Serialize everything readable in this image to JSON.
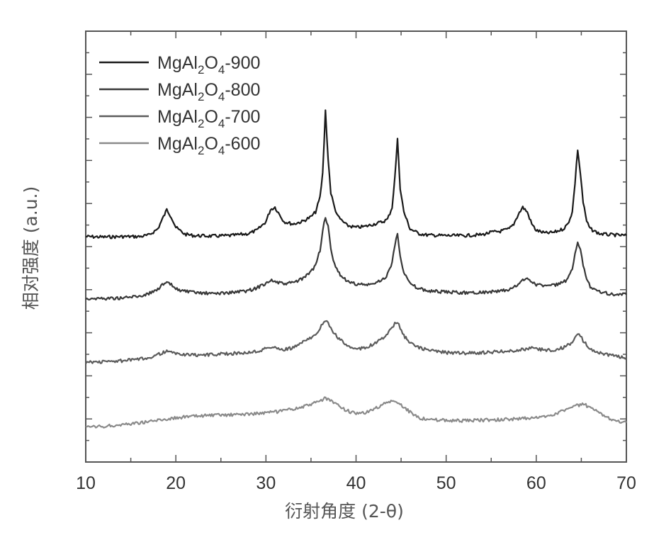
{
  "chart_data": {
    "type": "line",
    "xlabel": "衍射角度 (2-θ)",
    "ylabel": "相对强度 (a.u.)",
    "xlim": [
      10,
      70
    ],
    "xticks": [
      "10",
      "20",
      "30",
      "40",
      "50",
      "60",
      "70"
    ],
    "y_tick_labels_shown": false,
    "grid": false,
    "legend_position": "top-left",
    "series": [
      {
        "name": "MgAl2O4-900",
        "label_main": "MgAl",
        "label_sub1": "2",
        "label_mid": "O",
        "label_sub2": "4",
        "label_tail": "-900",
        "color": "#1a1a1a",
        "x": [
          10,
          12,
          14,
          16,
          17,
          18,
          18.5,
          19,
          19.5,
          20,
          21,
          22,
          24,
          26,
          28,
          29,
          30,
          30.5,
          31,
          31.5,
          32,
          33,
          34,
          35,
          35.5,
          36,
          36.3,
          36.6,
          36.9,
          37.2,
          37.6,
          38,
          39,
          40,
          41,
          42,
          43,
          43.5,
          44,
          44.3,
          44.6,
          44.9,
          45.3,
          46,
          47,
          48,
          50,
          52,
          54,
          55,
          56,
          57,
          57.5,
          58,
          58.5,
          59,
          59.5,
          60,
          61,
          62,
          63,
          63.5,
          64,
          64.3,
          64.6,
          64.9,
          65.2,
          65.6,
          66,
          67,
          68,
          69,
          70
        ],
        "y": [
          0.9,
          0.8,
          0.9,
          0.9,
          1.2,
          2.5,
          4.5,
          6.5,
          5.0,
          2.8,
          1.4,
          1.1,
          1.0,
          1.1,
          1.5,
          2.2,
          4.0,
          6.5,
          7.0,
          5.5,
          4.0,
          3.5,
          4.0,
          5.0,
          6.0,
          9.0,
          14.0,
          27.0,
          17.0,
          10.0,
          7.0,
          5.0,
          3.2,
          2.8,
          3.0,
          3.5,
          4.0,
          4.5,
          7.0,
          13.0,
          21.0,
          11.0,
          6.0,
          2.5,
          1.5,
          1.2,
          1.1,
          1.1,
          1.3,
          1.8,
          2.0,
          2.5,
          3.5,
          5.5,
          7.0,
          6.0,
          3.5,
          2.2,
          1.6,
          1.8,
          2.5,
          3.5,
          6.0,
          12.0,
          19.0,
          14.0,
          8.0,
          4.0,
          2.5,
          1.5,
          1.3,
          1.2,
          1.1
        ]
      },
      {
        "name": "MgAl2O4-800",
        "label_main": "MgAl",
        "label_sub1": "2",
        "label_mid": "O",
        "label_sub2": "4",
        "label_tail": "-800",
        "color": "#383838",
        "x": [
          10,
          12,
          14,
          16,
          17,
          18,
          18.5,
          19,
          19.5,
          20,
          21,
          22,
          24,
          26,
          28,
          29,
          30,
          30.5,
          31,
          31.5,
          32,
          33,
          34,
          35,
          35.5,
          36,
          36.3,
          36.6,
          36.9,
          37.2,
          37.6,
          38,
          39,
          40,
          41,
          42,
          43,
          43.5,
          44,
          44.3,
          44.6,
          44.9,
          45.3,
          46,
          47,
          48,
          50,
          52,
          54,
          56,
          57,
          58,
          58.5,
          59,
          59.5,
          60,
          61,
          62,
          63,
          63.5,
          64,
          64.3,
          64.6,
          64.9,
          65.2,
          65.6,
          66,
          67,
          68,
          69,
          70
        ],
        "y": [
          1.0,
          1.0,
          1.1,
          1.5,
          2.0,
          3.0,
          3.8,
          4.2,
          3.8,
          3.0,
          2.5,
          2.2,
          2.0,
          2.2,
          2.6,
          3.2,
          4.2,
          4.8,
          4.5,
          4.2,
          4.0,
          4.3,
          5.0,
          6.5,
          8.0,
          11.0,
          15.0,
          18.0,
          16.0,
          11.0,
          8.0,
          6.5,
          4.5,
          4.0,
          3.8,
          4.0,
          5.0,
          6.0,
          8.5,
          12.0,
          14.5,
          10.0,
          6.5,
          4.0,
          3.0,
          2.6,
          2.3,
          2.2,
          2.3,
          2.5,
          2.8,
          3.8,
          4.8,
          5.2,
          4.6,
          3.9,
          3.6,
          3.8,
          4.3,
          5.0,
          7.0,
          10.0,
          12.5,
          11.0,
          8.0,
          5.0,
          3.5,
          2.5,
          2.0,
          1.8,
          1.8
        ]
      },
      {
        "name": "MgAl2O4-700",
        "label_main": "MgAl",
        "label_sub1": "2",
        "label_mid": "O",
        "label_sub2": "4",
        "label_tail": "-700",
        "color": "#5c5c5c",
        "x": [
          10,
          12,
          14,
          16,
          17,
          18,
          18.5,
          19,
          19.5,
          20,
          21,
          22,
          24,
          26,
          28,
          29,
          30,
          30.5,
          31,
          31.5,
          32,
          33,
          34,
          35,
          35.5,
          36,
          36.3,
          36.6,
          36.9,
          37.2,
          37.6,
          38,
          39,
          40,
          41,
          42,
          43,
          43.5,
          44,
          44.3,
          44.6,
          44.9,
          45.3,
          46,
          47,
          48,
          50,
          52,
          54,
          56,
          58,
          59,
          59.5,
          60,
          61,
          62,
          63,
          63.5,
          64,
          64.3,
          64.6,
          64.9,
          65.2,
          65.6,
          66,
          67,
          68,
          69,
          70
        ],
        "y": [
          1.0,
          1.1,
          1.3,
          1.6,
          2.0,
          2.6,
          3.0,
          3.2,
          3.0,
          2.8,
          2.6,
          2.5,
          2.6,
          2.8,
          3.0,
          3.3,
          3.8,
          4.2,
          4.0,
          3.7,
          3.6,
          4.0,
          5.0,
          6.2,
          7.0,
          8.0,
          9.0,
          9.5,
          9.0,
          8.0,
          7.0,
          6.0,
          4.5,
          3.8,
          4.0,
          4.8,
          6.0,
          7.0,
          8.0,
          9.0,
          9.5,
          8.0,
          6.5,
          5.0,
          4.0,
          3.5,
          3.0,
          2.9,
          3.0,
          3.2,
          3.5,
          3.8,
          4.0,
          3.8,
          3.5,
          3.6,
          4.0,
          4.5,
          5.0,
          6.0,
          7.0,
          6.5,
          5.5,
          4.5,
          3.8,
          3.0,
          2.5,
          2.2,
          2.0
        ]
      },
      {
        "name": "MgAl2O4-600",
        "label_main": "MgAl",
        "label_sub1": "2",
        "label_mid": "O",
        "label_sub2": "4",
        "label_tail": "-600",
        "color": "#8a8a8a",
        "x": [
          10,
          12,
          14,
          16,
          18,
          20,
          22,
          24,
          26,
          28,
          30,
          32,
          33,
          34,
          35,
          36,
          36.5,
          37,
          38,
          39,
          40,
          41,
          42,
          43,
          43.5,
          44,
          44.5,
          45,
          46,
          47,
          48,
          50,
          52,
          54,
          56,
          58,
          60,
          61,
          62,
          63,
          64,
          65,
          65.5,
          66,
          67,
          68,
          69,
          70
        ],
        "y": [
          1.0,
          1.2,
          1.6,
          2.0,
          2.5,
          3.0,
          3.3,
          3.5,
          3.6,
          3.8,
          4.0,
          4.4,
          4.8,
          5.2,
          5.8,
          6.5,
          7.0,
          6.8,
          5.5,
          4.5,
          3.8,
          4.0,
          4.8,
          5.8,
          6.2,
          6.5,
          6.2,
          5.6,
          4.2,
          3.0,
          2.6,
          2.5,
          2.4,
          2.5,
          2.6,
          2.8,
          3.0,
          3.3,
          3.8,
          4.5,
          5.2,
          5.8,
          5.6,
          5.0,
          4.0,
          3.0,
          2.4,
          2.0
        ]
      }
    ]
  }
}
